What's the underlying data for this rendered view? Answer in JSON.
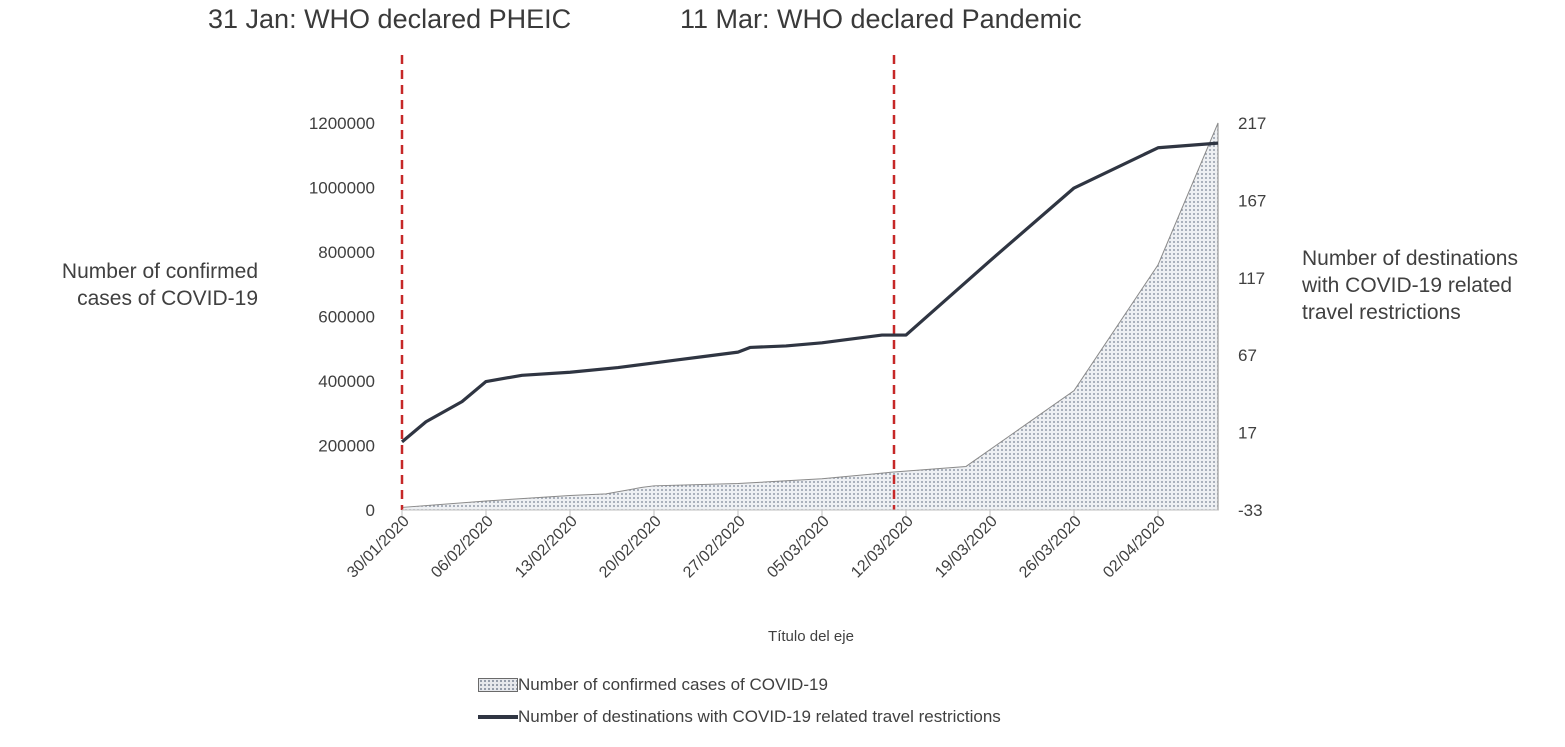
{
  "annotations": {
    "pheic": "31 Jan: WHO declared PHEIC",
    "pandemic": "11 Mar: WHO declared Pandemic"
  },
  "chart_data": {
    "type": "area",
    "title": "",
    "xlabel": "Título del eje",
    "ylabel_left": [
      "Number of confirmed",
      "cases of COVID-19"
    ],
    "ylabel_right": [
      "Number of destinations",
      "with COVID-19 related",
      "travel restrictions"
    ],
    "x_tick_labels": [
      "30/01/2020",
      "06/02/2020",
      "13/02/2020",
      "20/02/2020",
      "27/02/2020",
      "05/03/2020",
      "12/03/2020",
      "19/03/2020",
      "26/03/2020",
      "02/04/2020"
    ],
    "y_left": {
      "min": 0,
      "max": 1200000,
      "ticks": [
        0,
        200000,
        400000,
        600000,
        800000,
        1000000,
        1200000
      ]
    },
    "y_right": {
      "min": -33,
      "max": 217,
      "ticks": [
        -33,
        17,
        67,
        117,
        167,
        217
      ]
    },
    "grid": false,
    "legend_position": "bottom",
    "vlines": [
      {
        "label": "31 Jan: WHO declared PHEIC",
        "x": "30/01/2020",
        "color": "#c62828"
      },
      {
        "label": "11 Mar: WHO declared Pandemic",
        "x": "11/03/2020",
        "color": "#c62828"
      }
    ],
    "series": [
      {
        "name": "Number of confirmed cases of COVID-19",
        "axis": "left",
        "style": "dotted-area",
        "points": [
          [
            "30/01/2020",
            8000
          ],
          [
            "06/02/2020",
            28000
          ],
          [
            "13/02/2020",
            45000
          ],
          [
            "16/02/2020",
            50000
          ],
          [
            "19/02/2020",
            70000
          ],
          [
            "20/02/2020",
            75000
          ],
          [
            "27/02/2020",
            82000
          ],
          [
            "05/03/2020",
            97000
          ],
          [
            "11/03/2020",
            118000
          ],
          [
            "17/03/2020",
            135000
          ],
          [
            "26/03/2020",
            370000
          ],
          [
            "02/04/2020",
            760000
          ],
          [
            "07/04/2020",
            1200000
          ]
        ]
      },
      {
        "name": "Number of destinations with COVID-19 related travel restrictions",
        "axis": "right",
        "style": "line",
        "color": "#2f3542",
        "points": [
          [
            "30/01/2020",
            11
          ],
          [
            "01/02/2020",
            24
          ],
          [
            "04/02/2020",
            37
          ],
          [
            "06/02/2020",
            50
          ],
          [
            "09/02/2020",
            54
          ],
          [
            "13/02/2020",
            56
          ],
          [
            "17/02/2020",
            59
          ],
          [
            "20/02/2020",
            62
          ],
          [
            "22/02/2020",
            64
          ],
          [
            "24/02/2020",
            66
          ],
          [
            "27/02/2020",
            69
          ],
          [
            "28/02/2020",
            72
          ],
          [
            "02/03/2020",
            73
          ],
          [
            "05/03/2020",
            75
          ],
          [
            "07/03/2020",
            77
          ],
          [
            "10/03/2020",
            80
          ],
          [
            "12/03/2020",
            80
          ],
          [
            "19/03/2020",
            128
          ],
          [
            "26/03/2020",
            175
          ],
          [
            "02/04/2020",
            201
          ],
          [
            "07/04/2020",
            204
          ]
        ]
      }
    ]
  }
}
